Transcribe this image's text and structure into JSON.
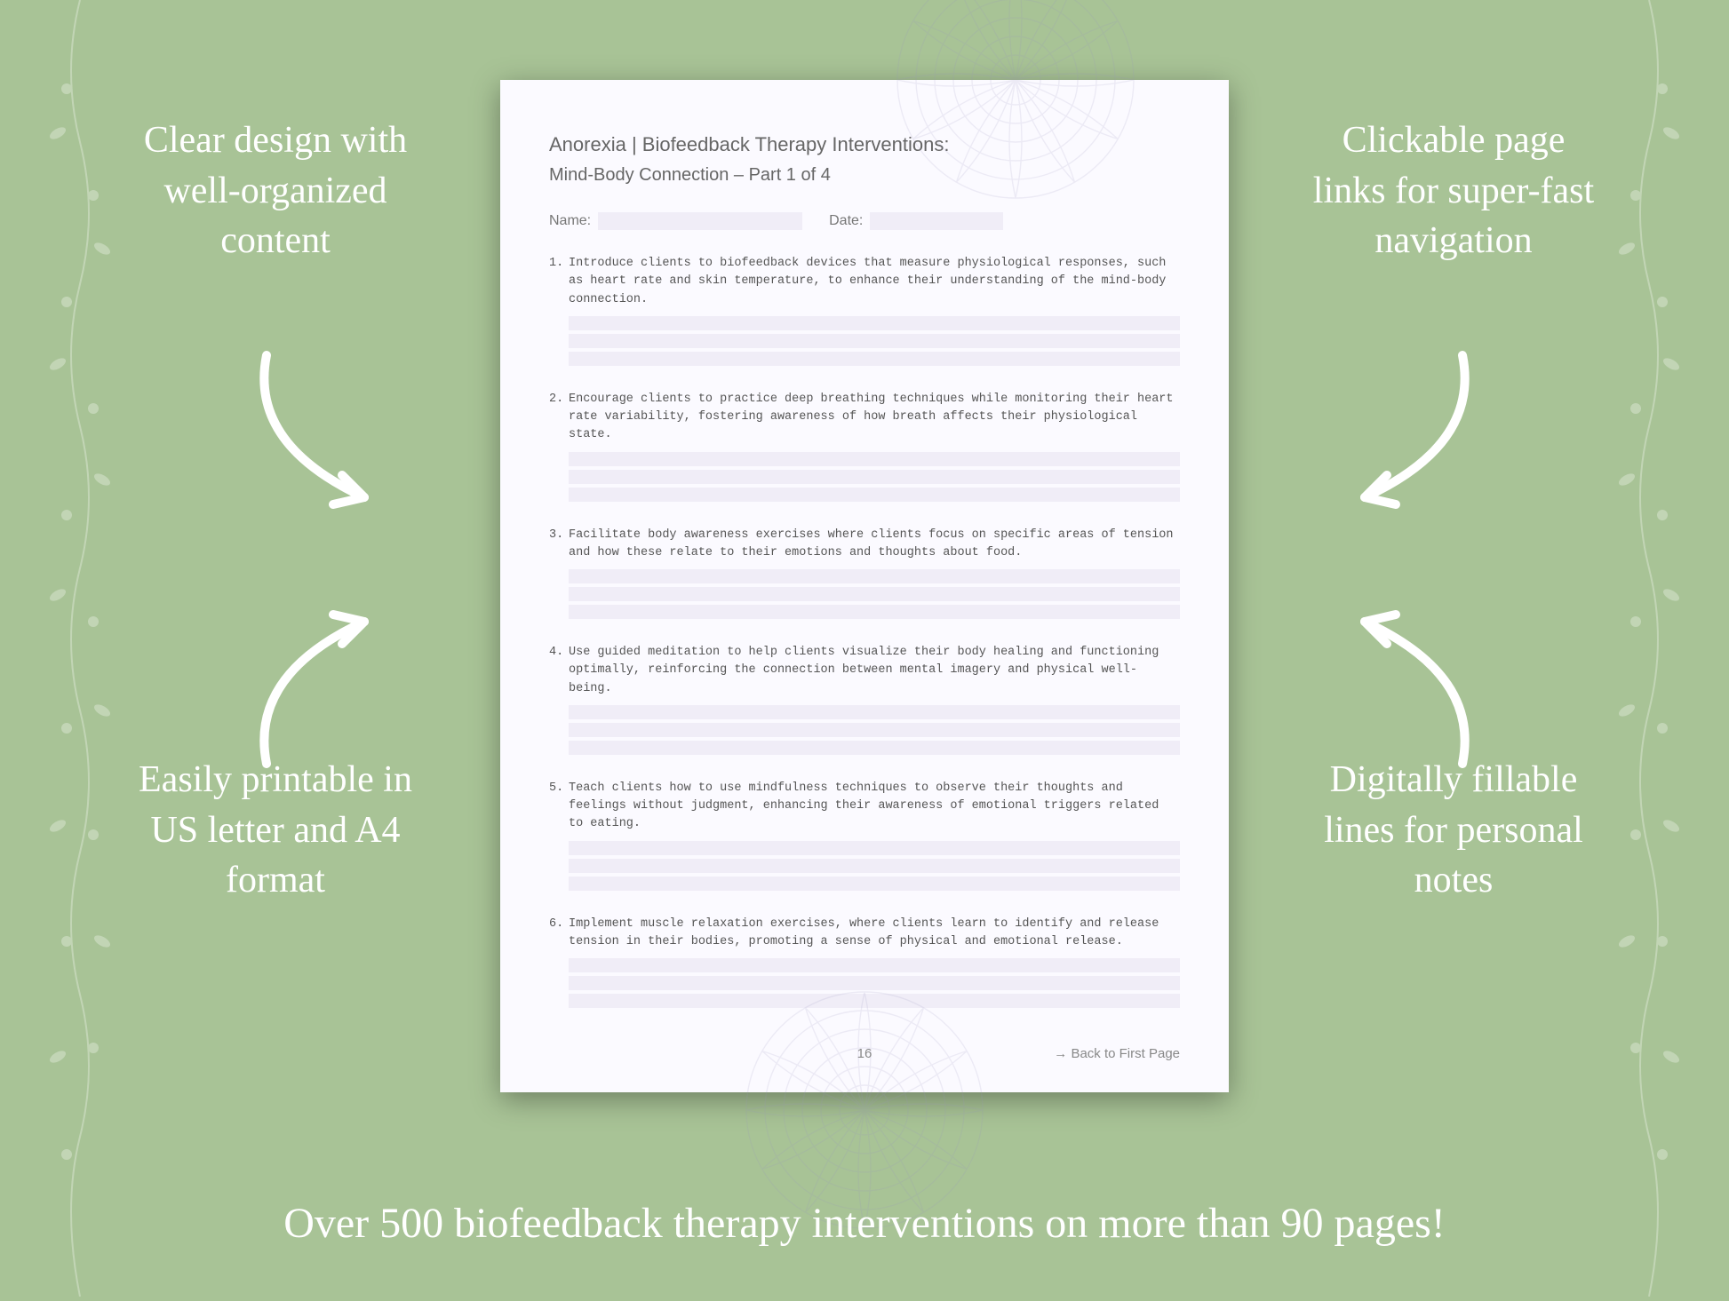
{
  "background_color": "#a8c396",
  "callouts": {
    "top_left": "Clear design with well-organized content",
    "top_right": "Clickable page links for super-fast navigation",
    "bottom_left": "Easily printable in US letter and A4 format",
    "bottom_right": "Digitally fillable lines for personal notes"
  },
  "callout_style": {
    "color": "#ffffff",
    "fontsize": 42,
    "font_family": "serif"
  },
  "bottom_banner": "Over 500 biofeedback therapy interventions on more than 90 pages!",
  "bottom_banner_style": {
    "color": "#ffffff",
    "fontsize": 48
  },
  "document": {
    "page_bg": "#fbfaff",
    "fill_line_color": "#f0edf7",
    "text_color": "#555555",
    "title_line1": "Anorexia | Biofeedback Therapy Interventions:",
    "title_line2": "Mind-Body Connection  – Part 1 of 4",
    "name_label": "Name:",
    "date_label": "Date:",
    "items": [
      {
        "num": "1.",
        "text": "Introduce clients to biofeedback devices that measure physiological responses, such as heart rate and skin temperature, to enhance their understanding of the mind-body connection."
      },
      {
        "num": "2.",
        "text": "Encourage clients to practice deep breathing techniques while monitoring their heart rate variability, fostering awareness of how breath affects their physiological state."
      },
      {
        "num": "3.",
        "text": "Facilitate body awareness exercises where clients focus on specific areas of tension and how these relate to their emotions and thoughts about food."
      },
      {
        "num": "4.",
        "text": "Use guided meditation to help clients visualize their body healing and functioning optimally, reinforcing the connection between mental imagery and physical well-being."
      },
      {
        "num": "5.",
        "text": "Teach clients how to use mindfulness techniques to observe their thoughts and feelings without judgment, enhancing their awareness of emotional triggers related to eating."
      },
      {
        "num": "6.",
        "text": "Implement muscle relaxation exercises, where clients learn to identify and release tension in their bodies, promoting a sense of physical and emotional release."
      }
    ],
    "page_number": "16",
    "back_link": "→ Back to First Page"
  },
  "decor": {
    "vine_color": "#ffffff",
    "vine_opacity": 0.3,
    "arrow_color": "#ffffff",
    "mandala_color": "#9a95c0"
  }
}
